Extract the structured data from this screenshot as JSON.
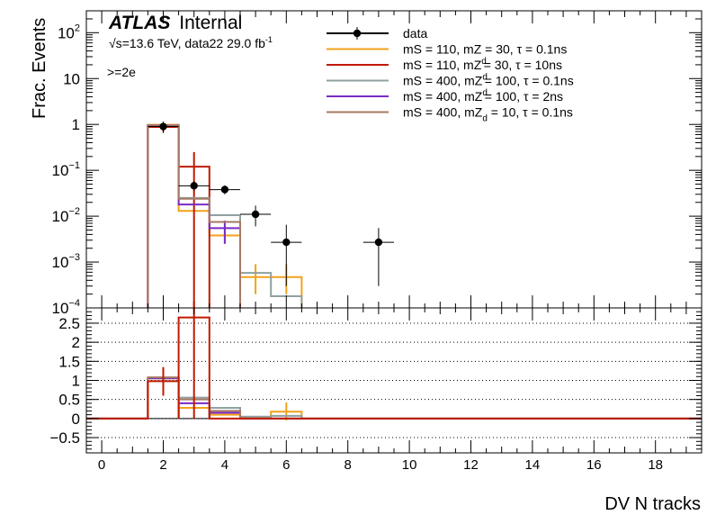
{
  "chart_data": [
    {
      "type": "histogram",
      "panel": "upper",
      "ylabel": "Frac. Events",
      "yscale": "log",
      "ylim": [
        0.0001,
        300
      ],
      "xlim": [
        -0.5,
        19.5
      ],
      "yticks": [
        {
          "value": 100,
          "base": "10",
          "exp": "2"
        },
        {
          "value": 10,
          "base": "10",
          "exp": ""
        },
        {
          "value": 1,
          "base": "1",
          "exp": ""
        },
        {
          "value": 0.1,
          "base": "10",
          "exp": "−1"
        },
        {
          "value": 0.01,
          "base": "10",
          "exp": "−2"
        },
        {
          "value": 0.001,
          "base": "10",
          "exp": "−3"
        },
        {
          "value": 0.0001,
          "base": "10",
          "exp": "−4"
        }
      ],
      "atlas": {
        "bold": "ATLAS",
        "rest": "Internal"
      },
      "energy_label": {
        "sqrt": "√s",
        "text": "=13.6 TeV, data22 29.0 fb",
        "sup": "-1"
      },
      "selection_label": ">=2e",
      "legend_placement": "top-right",
      "legend": [
        {
          "a": "data",
          "b": "",
          "sub": "",
          "c": "",
          "color": "#000000",
          "marker": true
        },
        {
          "a": "mS = 110, mZ",
          "b": "",
          "sub": "",
          "c": " = 30, τ = 0.1ns",
          "color": "#f2a21a",
          "marker": false
        },
        {
          "a": "mS = 110, mZ",
          "b": "d",
          "sub": "",
          "c": " = 30, τ = 10ns",
          "color": "#c01a00",
          "marker": false
        },
        {
          "a": "mS = 400, mZ",
          "b": "d",
          "sub": "",
          "c": " = 100, τ = 0.1ns",
          "color": "#8fa1a0",
          "marker": false
        },
        {
          "a": "mS = 400, mZ",
          "b": "d",
          "sub": "",
          "c": " = 100, τ = 2ns",
          "color": "#7a2bc4",
          "marker": false
        },
        {
          "a": "mS = 400, mZ",
          "b": "",
          "sub": "d",
          "c": " = 10, τ = 0.1ns",
          "color": "#a67863",
          "marker": false
        }
      ],
      "data_points": [
        {
          "x": 2,
          "y": 0.9,
          "ylo": 0.65,
          "yhi": 1.15
        },
        {
          "x": 3,
          "y": 0.046,
          "ylo": 0.036,
          "yhi": 0.058
        },
        {
          "x": 4,
          "y": 0.038,
          "ylo": 0.03,
          "yhi": 0.047
        },
        {
          "x": 5,
          "y": 0.011,
          "ylo": 0.006,
          "yhi": 0.017
        },
        {
          "x": 6,
          "y": 0.0027,
          "ylo": 0.0003,
          "yhi": 0.0065
        },
        {
          "x": 9,
          "y": 0.0027,
          "ylo": 0.0003,
          "yhi": 0.0055
        }
      ],
      "series": [
        {
          "name": "mS = 110, mZ = 30, τ = 0.1ns",
          "color": "#f2a21a",
          "bins": [
            [
              1.5,
              2.5,
              0.98
            ],
            [
              2.5,
              3.5,
              0.013
            ],
            [
              3.5,
              4.5,
              0.0038
            ],
            [
              4.5,
              5.5,
              0.00047
            ],
            [
              5.5,
              6.5,
              0.00047
            ]
          ],
          "errors": [
            {
              "x": 4,
              "lo": 0.0025,
              "hi": 0.0055
            },
            {
              "x": 5,
              "lo": 0.0002,
              "hi": 0.0009
            },
            {
              "x": 6,
              "lo": 0.0002,
              "hi": 0.0009
            }
          ]
        },
        {
          "name": "mS = 110, mZd = 30, τ = 10ns",
          "color": "#c01a00",
          "bins": [
            [
              1.5,
              2.5,
              0.88
            ],
            [
              2.5,
              3.5,
              0.12
            ]
          ],
          "errors": [
            {
              "x": 2,
              "lo": 0.7,
              "hi": 1.05
            },
            {
              "x": 3,
              "lo": 0.0001,
              "hi": 0.25
            }
          ]
        },
        {
          "name": "mS = 400, mZd = 100, τ = 0.1ns",
          "color": "#8fa1a0",
          "bins": [
            [
              1.5,
              2.5,
              0.95
            ],
            [
              2.5,
              3.5,
              0.025
            ],
            [
              3.5,
              4.5,
              0.0105
            ],
            [
              4.5,
              5.5,
              0.00058
            ],
            [
              5.5,
              6.5,
              0.00018
            ]
          ],
          "errors": []
        },
        {
          "name": "mS = 400, mZd = 100, τ = 2ns",
          "color": "#7a2bc4",
          "bins": [
            [
              1.5,
              2.5,
              0.96
            ],
            [
              2.5,
              3.5,
              0.018
            ],
            [
              3.5,
              4.5,
              0.0055
            ]
          ],
          "errors": [
            {
              "x": 4,
              "lo": 0.0025,
              "hi": 0.008
            }
          ]
        },
        {
          "name": "mS = 400, mZd = 10, τ = 0.1ns",
          "color": "#a67863",
          "bins": [
            [
              1.5,
              2.5,
              0.97
            ],
            [
              2.5,
              3.5,
              0.024
            ],
            [
              3.5,
              4.5,
              0.0075
            ]
          ],
          "errors": []
        }
      ]
    },
    {
      "type": "histogram",
      "panel": "ratio",
      "ylim": [
        -0.9,
        2.9
      ],
      "xlim": [
        -0.5,
        19.5
      ],
      "xlabel": "DV N tracks",
      "yticks": [
        {
          "value": 2.5,
          "label": "2.5"
        },
        {
          "value": 2,
          "label": "2"
        },
        {
          "value": 1.5,
          "label": "1.5"
        },
        {
          "value": 1,
          "label": "1"
        },
        {
          "value": 0.5,
          "label": "0.5"
        },
        {
          "value": 0,
          "label": "0"
        },
        {
          "value": -0.5,
          "label": "−0.5"
        }
      ],
      "xticks": [
        {
          "value": 0,
          "label": "0"
        },
        {
          "value": 2,
          "label": "2"
        },
        {
          "value": 4,
          "label": "4"
        },
        {
          "value": 6,
          "label": "6"
        },
        {
          "value": 8,
          "label": "8"
        },
        {
          "value": 10,
          "label": "10"
        },
        {
          "value": 12,
          "label": "12"
        },
        {
          "value": 14,
          "label": "14"
        },
        {
          "value": 16,
          "label": "16"
        },
        {
          "value": 18,
          "label": "18"
        }
      ],
      "series": [
        {
          "color": "#f2a21a",
          "bins": [
            [
              1.5,
              2.5,
              1.07
            ],
            [
              2.5,
              3.5,
              0.28
            ],
            [
              3.5,
              4.5,
              0.1
            ],
            [
              4.5,
              5.5,
              0.04
            ],
            [
              5.5,
              6.5,
              0.18
            ]
          ],
          "errors": [
            {
              "x": 6,
              "lo": -0.05,
              "hi": 0.42
            }
          ]
        },
        {
          "color": "#8fa1a0",
          "bins": [
            [
              1.5,
              2.5,
              1.05
            ],
            [
              2.5,
              3.5,
              0.55
            ],
            [
              3.5,
              4.5,
              0.28
            ],
            [
              4.5,
              5.5,
              0.05
            ],
            [
              5.5,
              6.5,
              0.07
            ]
          ],
          "errors": []
        },
        {
          "color": "#7a2bc4",
          "bins": [
            [
              1.5,
              2.5,
              1.06
            ],
            [
              2.5,
              3.5,
              0.4
            ],
            [
              3.5,
              4.5,
              0.15
            ]
          ],
          "errors": []
        },
        {
          "color": "#a67863",
          "bins": [
            [
              1.5,
              2.5,
              1.08
            ],
            [
              2.5,
              3.5,
              0.5
            ],
            [
              3.5,
              4.5,
              0.2
            ]
          ],
          "errors": []
        },
        {
          "color": "#c01a00",
          "bins": [
            [
              1.5,
              2.5,
              0.98
            ],
            [
              2.5,
              3.5,
              2.65
            ]
          ],
          "errors": [
            {
              "x": 2,
              "lo": 0.6,
              "hi": 1.35
            },
            {
              "x": 3,
              "lo": 0.0,
              "hi": 3.05
            }
          ]
        }
      ]
    }
  ]
}
